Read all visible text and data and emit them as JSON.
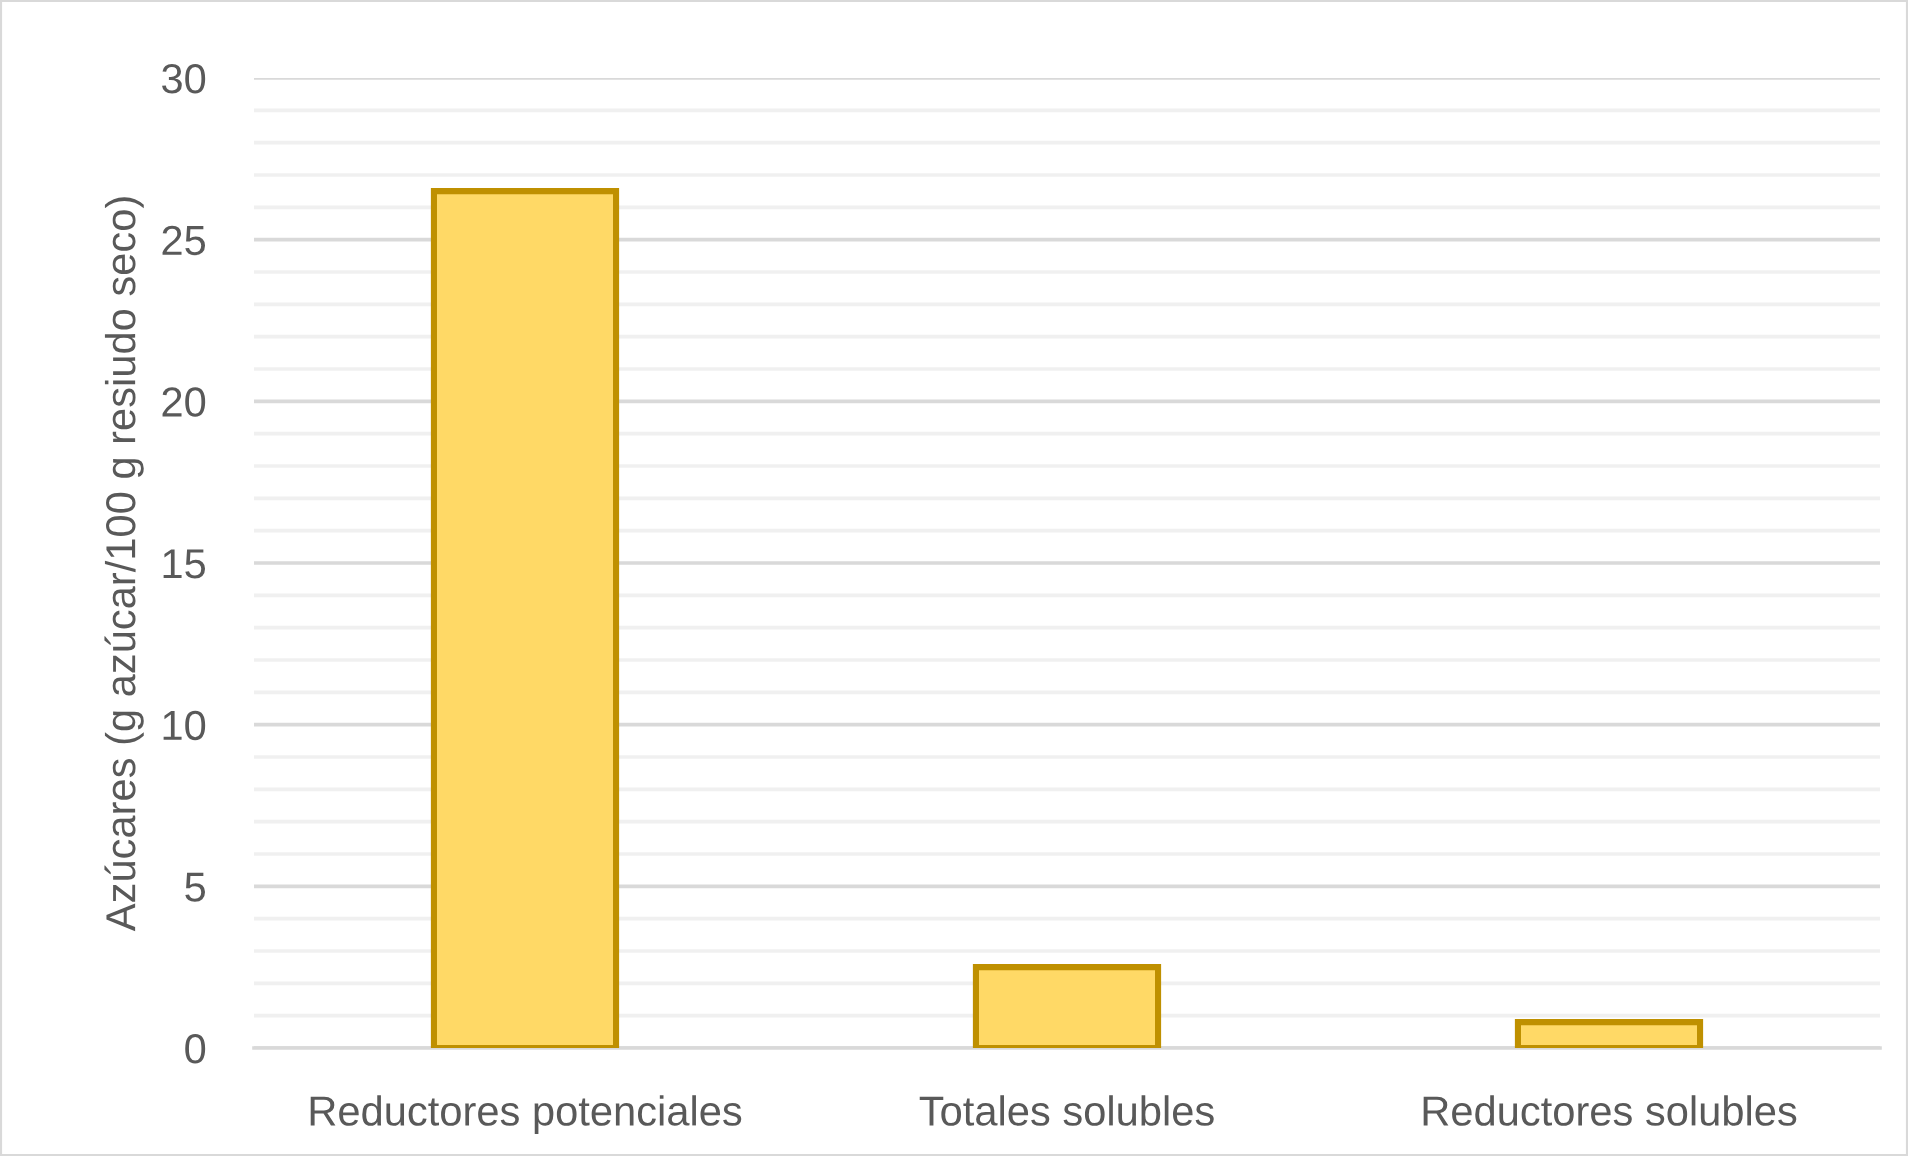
{
  "chart_data": {
    "type": "bar",
    "categories": [
      "Reductores potenciales",
      "Totales solubles",
      "Reductores solubles"
    ],
    "values": [
      26.5,
      2.5,
      0.8
    ],
    "color": "#FFD966",
    "ylabel": "Azúcares (g azúcar/100 g resiudo seco)",
    "ylim": [
      0,
      30
    ],
    "yticks": [
      0,
      {
        "value": 1,
        "label": null
      },
      {
        "value": 2,
        "label": null
      },
      {
        "value": 3,
        "label": null
      },
      {
        "value": 4,
        "label": null
      },
      5,
      {
        "value": 6,
        "label": null
      },
      {
        "value": 7,
        "label": null
      },
      {
        "value": 8,
        "label": null
      },
      {
        "value": 9,
        "label": null
      },
      10,
      {
        "value": 11,
        "label": null
      },
      {
        "value": 12,
        "label": null
      },
      {
        "value": 13,
        "label": null
      },
      {
        "value": 14,
        "label": null
      },
      15,
      {
        "value": 16,
        "label": null
      },
      {
        "value": 17,
        "label": null
      },
      {
        "value": 18,
        "label": null
      },
      {
        "value": 19,
        "label": null
      },
      20,
      {
        "value": 21,
        "label": null
      },
      {
        "value": 22,
        "label": null
      },
      {
        "value": 23,
        "label": null
      },
      {
        "value": 24,
        "label": null
      },
      25,
      {
        "value": 26,
        "label": null
      },
      {
        "value": 27,
        "label": null
      },
      {
        "value": 28,
        "label": null
      },
      {
        "value": 29,
        "label": null
      },
      30
    ],
    "grid": "y"
  }
}
